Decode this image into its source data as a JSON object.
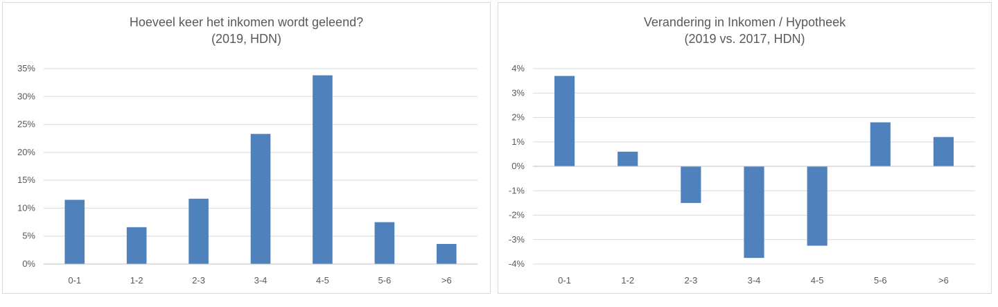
{
  "chart_data": [
    {
      "type": "bar",
      "title": "Hoeveel keer het inkomen wordt geleend?",
      "subtitle": "(2019, HDN)",
      "categories": [
        "0-1",
        "1-2",
        "2-3",
        "3-4",
        "4-5",
        "5-6",
        ">6"
      ],
      "values": [
        11.5,
        6.6,
        11.7,
        23.3,
        33.8,
        7.5,
        3.6
      ],
      "unit": "%",
      "ylim": [
        0,
        35
      ],
      "yticks": [
        0,
        5,
        10,
        15,
        20,
        25,
        30,
        35
      ],
      "ytick_labels": [
        "0%",
        "5%",
        "10%",
        "15%",
        "20%",
        "25%",
        "30%",
        "35%"
      ],
      "grid": true,
      "color": "#4f81bd"
    },
    {
      "type": "bar",
      "title": "Verandering in Inkomen / Hypotheek",
      "subtitle": "(2019 vs. 2017, HDN)",
      "categories": [
        "0-1",
        "1-2",
        "2-3",
        "3-4",
        "4-5",
        "5-6",
        ">6"
      ],
      "values": [
        3.7,
        0.6,
        -1.5,
        -3.75,
        -3.25,
        1.8,
        1.2
      ],
      "unit": "%",
      "ylim": [
        -4,
        4
      ],
      "yticks": [
        -4,
        -3,
        -2,
        -1,
        0,
        1,
        2,
        3,
        4
      ],
      "ytick_labels": [
        "-4%",
        "-3%",
        "-2%",
        "-1%",
        "0%",
        "1%",
        "2%",
        "3%",
        "4%"
      ],
      "grid": true,
      "color": "#4f81bd"
    }
  ]
}
